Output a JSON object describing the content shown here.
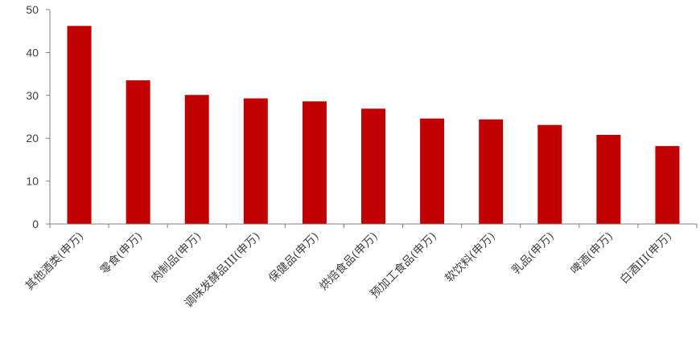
{
  "chart_data": {
    "type": "bar",
    "title": "",
    "xlabel": "",
    "ylabel": "",
    "ylim": [
      0,
      50
    ],
    "yticks": [
      0,
      10,
      20,
      30,
      40,
      50
    ],
    "grid": false,
    "legend": "none",
    "bar_color": "#C00000",
    "categories": [
      "其他酒类(申万)",
      "零食(申万)",
      "肉制品(申万)",
      "调味发酵品III(申万)",
      "保健品(申万)",
      "烘焙食品(申万)",
      "预加工食品(申万)",
      "软饮料(申万)",
      "乳品(申万)",
      "啤酒(申万)",
      "白酒III(申万)"
    ],
    "values": [
      46.2,
      33.5,
      30.1,
      29.3,
      28.6,
      26.9,
      24.6,
      24.4,
      23.1,
      20.8,
      18.2
    ]
  }
}
